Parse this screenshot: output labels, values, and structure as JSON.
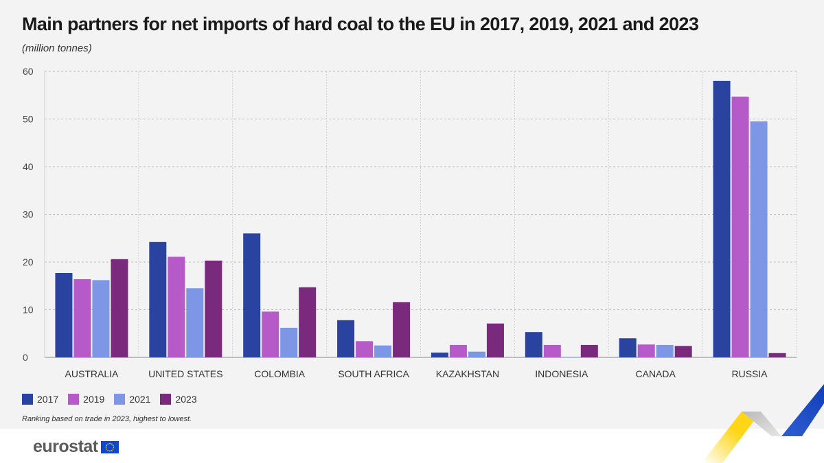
{
  "chart_data": {
    "type": "bar",
    "title": "Main partners for net imports of hard coal to the EU in 2017, 2019, 2021 and 2023",
    "subtitle": "(million tonnes)",
    "xlabel": "",
    "ylabel": "million tonnes",
    "ylim": [
      0,
      60
    ],
    "yticks": [
      0,
      10,
      20,
      30,
      40,
      50,
      60
    ],
    "grid": true,
    "legend_position": "bottom-left",
    "categories": [
      "AUSTRALIA",
      "UNITED STATES",
      "COLOMBIA",
      "SOUTH AFRICA",
      "KAZAKHSTAN",
      "INDONESIA",
      "CANADA",
      "RUSSIA"
    ],
    "series": [
      {
        "name": "2017",
        "color": "#2b43a0",
        "values": [
          17.7,
          24.2,
          26.0,
          7.8,
          1.0,
          5.3,
          4.0,
          58.0
        ]
      },
      {
        "name": "2019",
        "color": "#b65ac9",
        "values": [
          16.4,
          21.1,
          9.6,
          3.4,
          2.6,
          2.6,
          2.7,
          54.7
        ]
      },
      {
        "name": "2021",
        "color": "#7d97e6",
        "values": [
          16.2,
          14.5,
          6.2,
          2.5,
          1.2,
          0.1,
          2.6,
          49.5
        ]
      },
      {
        "name": "2023",
        "color": "#7a2a7c",
        "values": [
          20.6,
          20.3,
          14.7,
          11.6,
          7.1,
          2.6,
          2.4,
          0.9
        ]
      }
    ],
    "note": "Ranking based on trade in 2023, highest to lowest."
  },
  "footer": {
    "logo_text": "eurostat"
  }
}
